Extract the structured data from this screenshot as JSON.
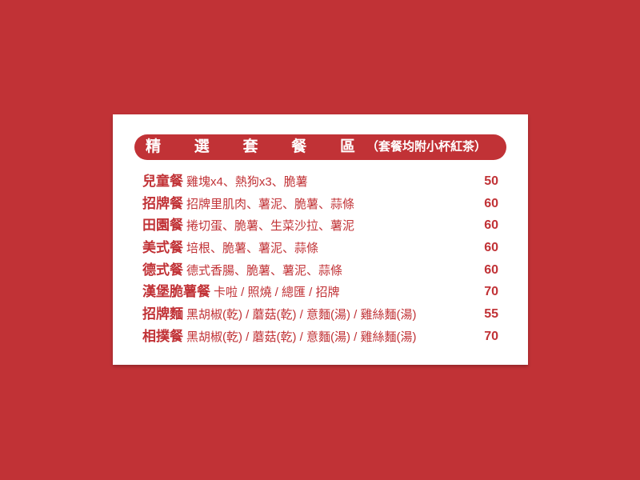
{
  "header": {
    "title_chars": [
      "精",
      "選",
      "套",
      "餐",
      "區"
    ],
    "note": "（套餐均附小杯紅茶）"
  },
  "menu": {
    "items": [
      {
        "name": "兒童餐",
        "desc": "雞塊x4、熱狗x3、脆薯",
        "price": "50"
      },
      {
        "name": "招牌餐",
        "desc": "招牌里肌肉、薯泥、脆薯、蒜條",
        "price": "60"
      },
      {
        "name": "田園餐",
        "desc": "捲切蛋、脆薯、生菜沙拉、薯泥",
        "price": "60"
      },
      {
        "name": "美式餐",
        "desc": "培根、脆薯、薯泥、蒜條",
        "price": "60"
      },
      {
        "name": "德式餐",
        "desc": "德式香腸、脆薯、薯泥、蒜條",
        "price": "60"
      },
      {
        "name": "漢堡脆薯餐",
        "desc": "卡啦 / 照燒 / 總匯 / 招牌",
        "price": "70"
      },
      {
        "name": "招牌麵",
        "desc": "黑胡椒(乾)  /  蘑菇(乾)  /  意麵(湯)  /  雞絲麵(湯)",
        "price": "55"
      },
      {
        "name": "相撲餐",
        "desc": "黑胡椒(乾)  /  蘑菇(乾)  /  意麵(湯)  /  雞絲麵(湯)",
        "price": "70"
      }
    ]
  },
  "colors": {
    "background": "#c13236",
    "card": "#ffffff",
    "accent": "#c13236"
  }
}
